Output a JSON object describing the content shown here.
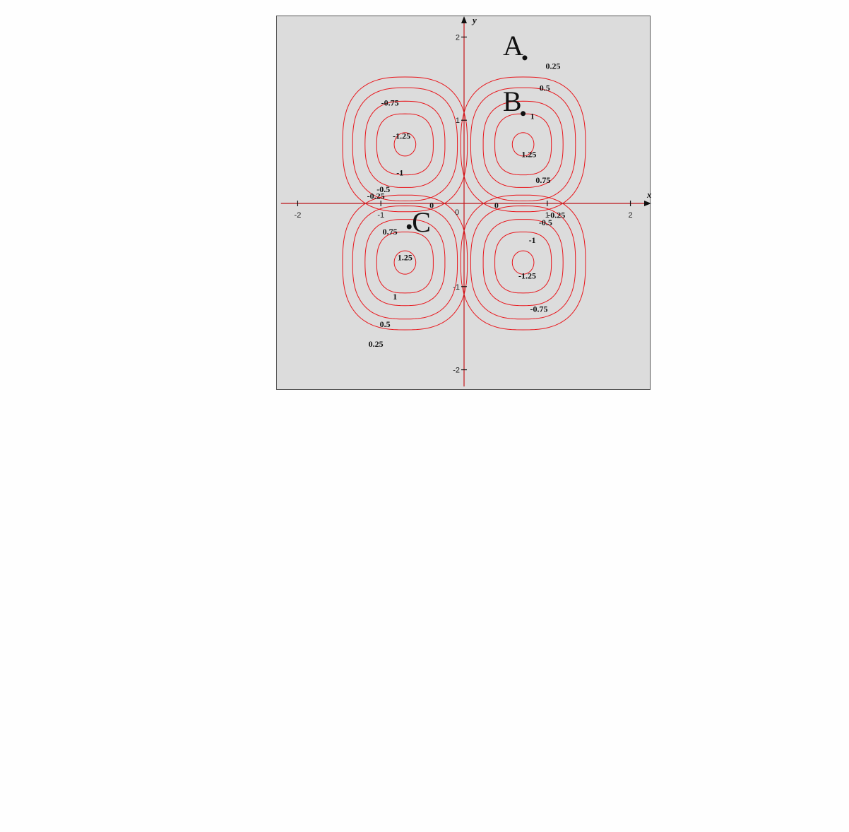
{
  "chart_data": {
    "type": "contour",
    "title": "",
    "xlabel": "x",
    "ylabel": "y",
    "xlim": [
      -2.25,
      2.25
    ],
    "ylim": [
      -2.25,
      2.25
    ],
    "x_ticks": [
      -2,
      -1,
      1,
      2
    ],
    "y_ticks": [
      -2,
      -1,
      1,
      2
    ],
    "x_tick_labels": [
      "-2",
      "-1",
      "1",
      "2"
    ],
    "y_tick_labels": [
      "-2",
      "-1",
      "1",
      "2"
    ],
    "origin_label": "0",
    "grid": false,
    "contour_color": "#e8151b",
    "background_color": "#dcdcdc",
    "contour_levels": [
      0.25,
      0.5,
      0.75,
      1,
      1.25
    ],
    "lobes": [
      {
        "center": [
          0.71,
          0.71
        ],
        "sign": 1
      },
      {
        "center": [
          -0.71,
          0.71
        ],
        "sign": -1
      },
      {
        "center": [
          -0.71,
          -0.71
        ],
        "sign": 1
      },
      {
        "center": [
          0.71,
          -0.71
        ],
        "sign": -1
      }
    ],
    "contour_labels": [
      {
        "text": "0.25",
        "x": 1.07,
        "y": 1.65
      },
      {
        "text": "0.5",
        "x": 0.97,
        "y": 1.39
      },
      {
        "text": "1",
        "x": 0.82,
        "y": 1.05
      },
      {
        "text": "1.25",
        "x": 0.78,
        "y": 0.59
      },
      {
        "text": "0.75",
        "x": 0.95,
        "y": 0.28
      },
      {
        "text": "-0.75",
        "x": -0.89,
        "y": 1.21
      },
      {
        "text": "-1.25",
        "x": -0.75,
        "y": 0.81
      },
      {
        "text": "-1",
        "x": -0.77,
        "y": 0.37
      },
      {
        "text": "-0.5",
        "x": -0.97,
        "y": 0.17
      },
      {
        "text": "-0.25",
        "x": -1.06,
        "y": 0.09
      },
      {
        "text": "0",
        "x": -0.39,
        "y": -0.02
      },
      {
        "text": "0",
        "x": 0.39,
        "y": -0.02
      },
      {
        "text": "-0.25",
        "x": 1.11,
        "y": -0.14
      },
      {
        "text": "-0.5",
        "x": 0.98,
        "y": -0.23
      },
      {
        "text": "0.75",
        "x": -0.89,
        "y": -0.34
      },
      {
        "text": "-1",
        "x": 0.82,
        "y": -0.44
      },
      {
        "text": "1.25",
        "x": -0.71,
        "y": -0.65
      },
      {
        "text": "-1.25",
        "x": 0.76,
        "y": -0.87
      },
      {
        "text": "1",
        "x": -0.83,
        "y": -1.12
      },
      {
        "text": "-0.75",
        "x": 0.9,
        "y": -1.27
      },
      {
        "text": "0.5",
        "x": -0.95,
        "y": -1.45
      },
      {
        "text": "0.25",
        "x": -1.06,
        "y": -1.69
      }
    ],
    "points": [
      {
        "label": "A",
        "x": 0.73,
        "y": 1.75
      },
      {
        "label": "B",
        "x": 0.71,
        "y": 1.08
      },
      {
        "label": "C",
        "x": -0.66,
        "y": -0.28
      }
    ]
  }
}
